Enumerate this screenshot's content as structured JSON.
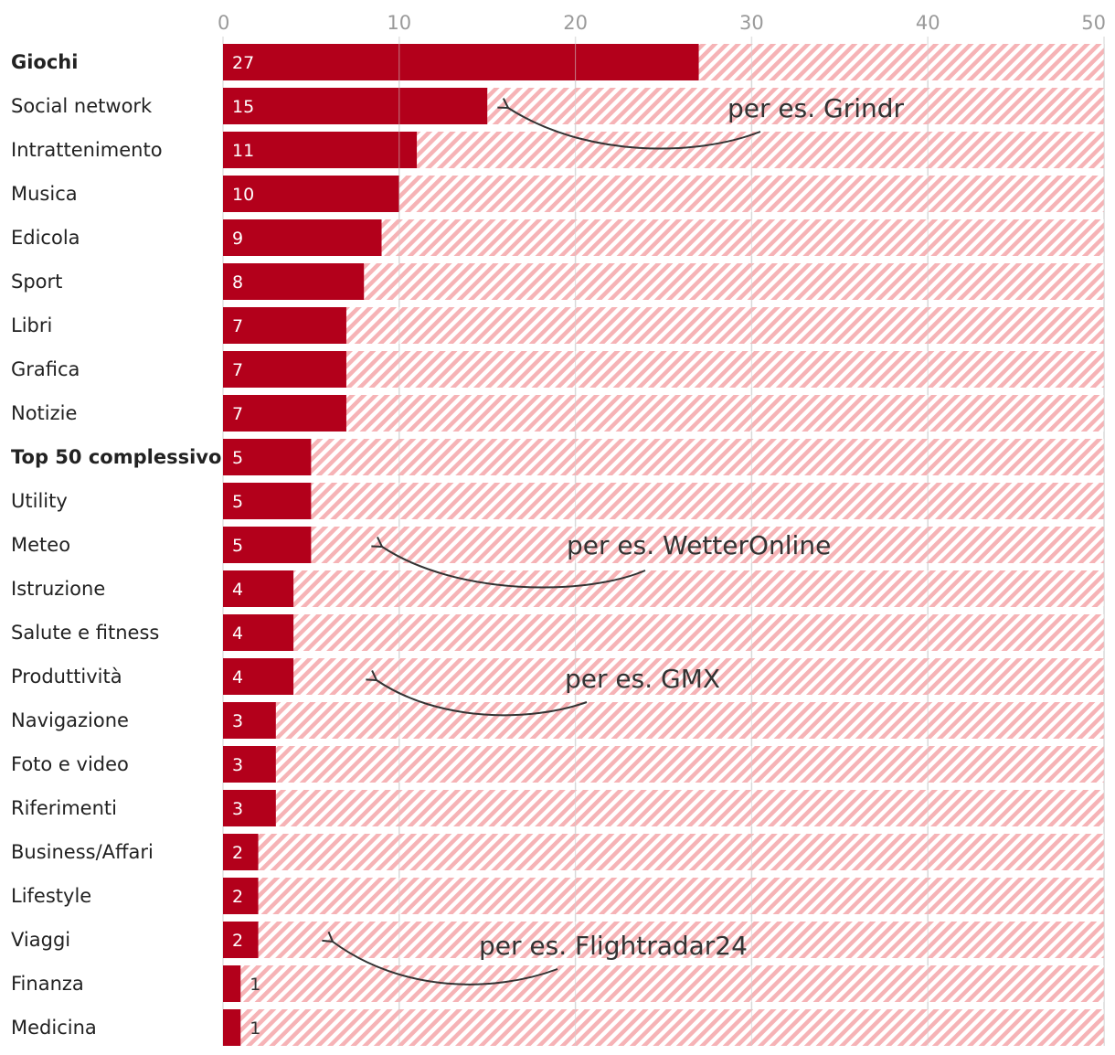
{
  "colors": {
    "bar": "#b3001b",
    "remainder_stripe": "#f6b3b6",
    "remainder_bg": "#ffffff",
    "grid": "#e2e2e2",
    "annotation": "#333333"
  },
  "chart_data": {
    "type": "bar",
    "orientation": "horizontal",
    "title": "",
    "xlabel": "",
    "ylabel": "",
    "xlim": [
      0,
      50
    ],
    "ticks": [
      0,
      10,
      20,
      30,
      40,
      50
    ],
    "tick_position": "top",
    "grid": true,
    "categories": [
      "Giochi",
      "Social network",
      "Intrattenimento",
      "Musica",
      "Edicola",
      "Sport",
      "Libri",
      "Grafica",
      "Notizie",
      "Top 50 complessivo",
      "Utility",
      "Meteo",
      "Istruzione",
      "Salute e fitness",
      "Produttività",
      "Navigazione",
      "Foto e video",
      "Riferimenti",
      "Business/Affari",
      "Lifestyle",
      "Viaggi",
      "Finanza",
      "Medicina"
    ],
    "bold_categories": [
      "Giochi",
      "Top 50 complessivo"
    ],
    "values": [
      27,
      15,
      11,
      10,
      9,
      8,
      7,
      7,
      7,
      5,
      5,
      5,
      4,
      4,
      4,
      3,
      3,
      3,
      2,
      2,
      2,
      1,
      1
    ],
    "annotations": [
      {
        "text": "per es. Grindr",
        "category": "Social network"
      },
      {
        "text": "per es. WetterOnline",
        "category": "Meteo"
      },
      {
        "text": "per es. GMX",
        "category": "Produttività"
      },
      {
        "text": "per es. Flightradar24",
        "category": "Viaggi"
      }
    ]
  }
}
